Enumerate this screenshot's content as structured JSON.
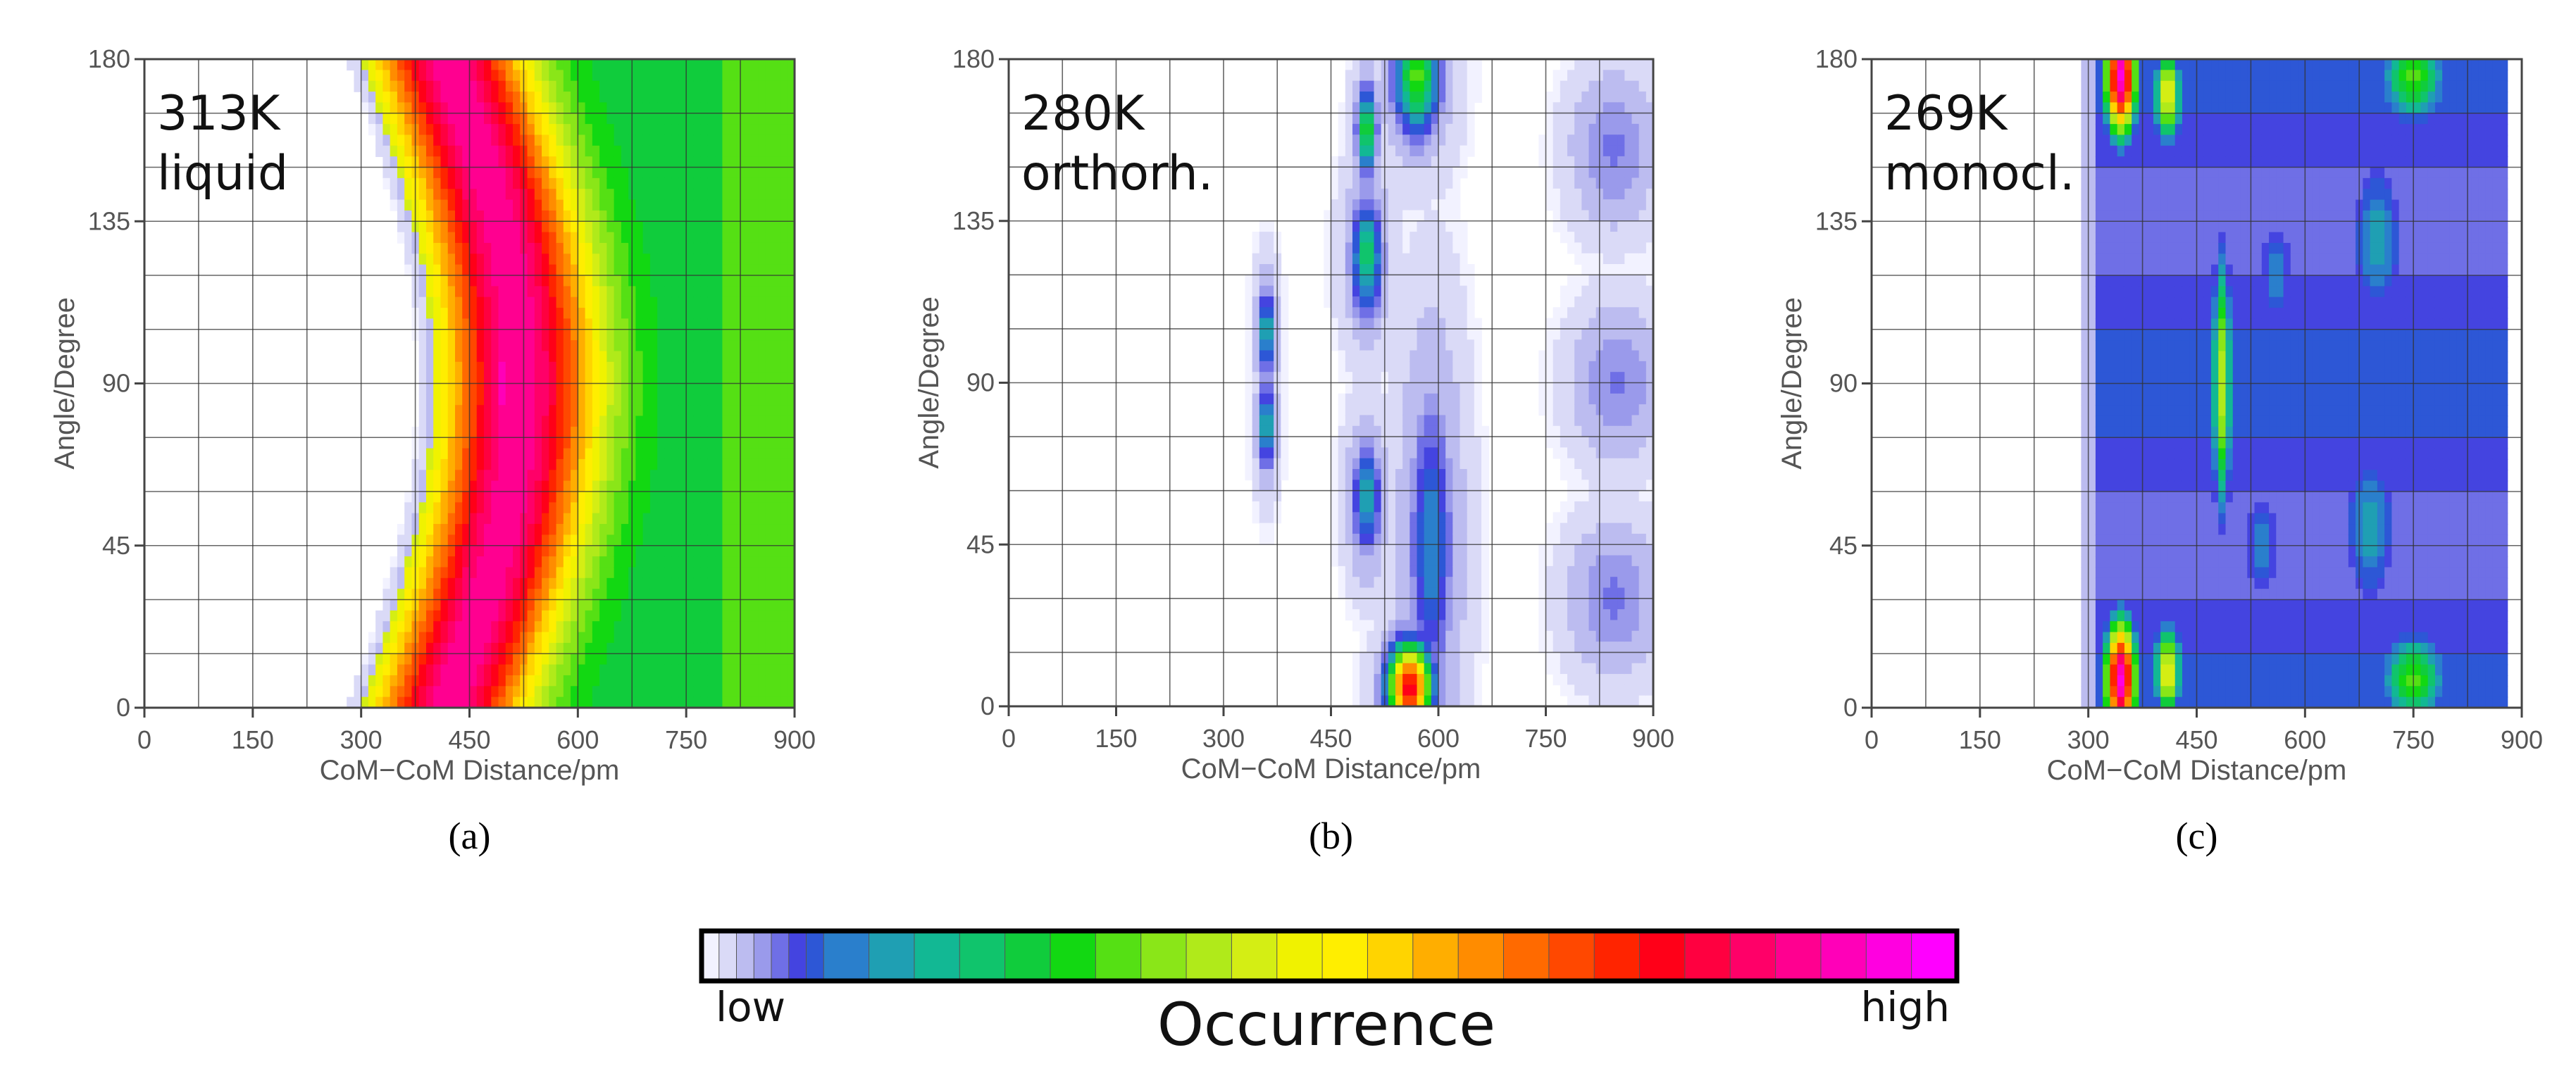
{
  "figure": {
    "colorbar": {
      "title": "Occurrence",
      "low_label": "low",
      "high_label": "high",
      "colors": [
        "#f2f2ff",
        "#dadaf7",
        "#bcbcf0",
        "#9a9aeb",
        "#6f6fe6",
        "#4444e0",
        "#2d57d6",
        "#2a7fcc",
        "#1f9fb3",
        "#12b894",
        "#10c46c",
        "#10cc3c",
        "#12d812",
        "#55e014",
        "#8ae618",
        "#b0ea1a",
        "#d4ee14",
        "#f0f200",
        "#ffee00",
        "#ffd400",
        "#ffae00",
        "#ff8c00",
        "#ff6a00",
        "#ff4800",
        "#ff2400",
        "#ff0018",
        "#ff0040",
        "#ff0068",
        "#ff0090",
        "#ff00b8",
        "#ff00e0",
        "#ff00ff"
      ]
    }
  },
  "chart_data": [
    {
      "type": "heatmap",
      "panel_label": "(a)",
      "annotation_line1": "313K",
      "annotation_line2": "liquid",
      "xlabel": "CoM−CoM Distance/pm",
      "ylabel": "Angle/Degree",
      "xlim": [
        0,
        900
      ],
      "ylim": [
        0,
        180
      ],
      "xticks": [
        "0",
        "150",
        "300",
        "450",
        "600",
        "750",
        "900"
      ],
      "yticks": [
        "0",
        "45",
        "90",
        "135",
        "180"
      ],
      "hotspots": [
        {
          "x": 450,
          "y": 172,
          "level": 0.8,
          "sx": 22,
          "sy": 15
        },
        {
          "x": 495,
          "y": 90,
          "level": 0.93,
          "sx": 20,
          "sy": 22
        },
        {
          "x": 440,
          "y": 10,
          "level": 0.8,
          "sx": 22,
          "sy": 14
        },
        {
          "x": 700,
          "y": 90,
          "level": 0.28,
          "sx": 45,
          "sy": 35
        }
      ]
    },
    {
      "type": "heatmap",
      "panel_label": "(b)",
      "annotation_line1": "280K",
      "annotation_line2": "orthorh.",
      "xlabel": "CoM−CoM Distance/pm",
      "ylabel": "Angle/Degree",
      "xlim": [
        0,
        900
      ],
      "ylim": [
        0,
        180
      ],
      "xticks": [
        "0",
        "150",
        "300",
        "450",
        "600",
        "750",
        "900"
      ],
      "yticks": [
        "0",
        "45",
        "90",
        "135",
        "180"
      ],
      "hotspots": [
        {
          "x": 560,
          "y": 5,
          "level": 0.82,
          "sx": 22,
          "sy": 9
        },
        {
          "x": 500,
          "y": 160,
          "level": 0.4,
          "sx": 10,
          "sy": 9
        },
        {
          "x": 570,
          "y": 175,
          "level": 0.42,
          "sx": 24,
          "sy": 12
        },
        {
          "x": 500,
          "y": 125,
          "level": 0.34,
          "sx": 16,
          "sy": 12
        },
        {
          "x": 360,
          "y": 104,
          "level": 0.32,
          "sx": 8,
          "sy": 9
        },
        {
          "x": 360,
          "y": 78,
          "level": 0.32,
          "sx": 8,
          "sy": 9
        },
        {
          "x": 500,
          "y": 58,
          "level": 0.3,
          "sx": 14,
          "sy": 11
        },
        {
          "x": 590,
          "y": 45,
          "level": 0.25,
          "sx": 22,
          "sy": 30
        },
        {
          "x": 845,
          "y": 155,
          "level": 0.14,
          "sx": 28,
          "sy": 10
        },
        {
          "x": 850,
          "y": 90,
          "level": 0.14,
          "sx": 30,
          "sy": 10
        },
        {
          "x": 845,
          "y": 30,
          "level": 0.14,
          "sx": 30,
          "sy": 10
        }
      ]
    },
    {
      "type": "heatmap",
      "panel_label": "(c)",
      "annotation_line1": "269K",
      "annotation_line2": "monocl.",
      "xlabel": "CoM−CoM Distance/pm",
      "ylabel": "Angle/Degree",
      "xlim": [
        0,
        900
      ],
      "ylim": [
        0,
        180
      ],
      "xticks": [
        "0",
        "150",
        "300",
        "450",
        "600",
        "750",
        "900"
      ],
      "yticks": [
        "0",
        "45",
        "90",
        "135",
        "180"
      ],
      "hotspots": [
        {
          "x": 345,
          "y": 175,
          "level": 0.95,
          "sx": 16,
          "sy": 12
        },
        {
          "x": 345,
          "y": 8,
          "level": 0.95,
          "sx": 16,
          "sy": 12
        },
        {
          "x": 410,
          "y": 170,
          "level": 0.55,
          "sx": 14,
          "sy": 10
        },
        {
          "x": 410,
          "y": 10,
          "level": 0.55,
          "sx": 14,
          "sy": 10
        },
        {
          "x": 485,
          "y": 90,
          "level": 0.5,
          "sx": 10,
          "sy": 28
        },
        {
          "x": 750,
          "y": 175,
          "level": 0.42,
          "sx": 35,
          "sy": 10
        },
        {
          "x": 750,
          "y": 8,
          "level": 0.42,
          "sx": 35,
          "sy": 10
        },
        {
          "x": 700,
          "y": 130,
          "level": 0.28,
          "sx": 30,
          "sy": 18
        },
        {
          "x": 690,
          "y": 50,
          "level": 0.28,
          "sx": 30,
          "sy": 18
        },
        {
          "x": 560,
          "y": 120,
          "level": 0.24,
          "sx": 20,
          "sy": 15
        },
        {
          "x": 540,
          "y": 45,
          "level": 0.24,
          "sx": 20,
          "sy": 15
        },
        {
          "x": 620,
          "y": 90,
          "level": 0.22,
          "sx": 30,
          "sy": 25
        }
      ]
    }
  ]
}
